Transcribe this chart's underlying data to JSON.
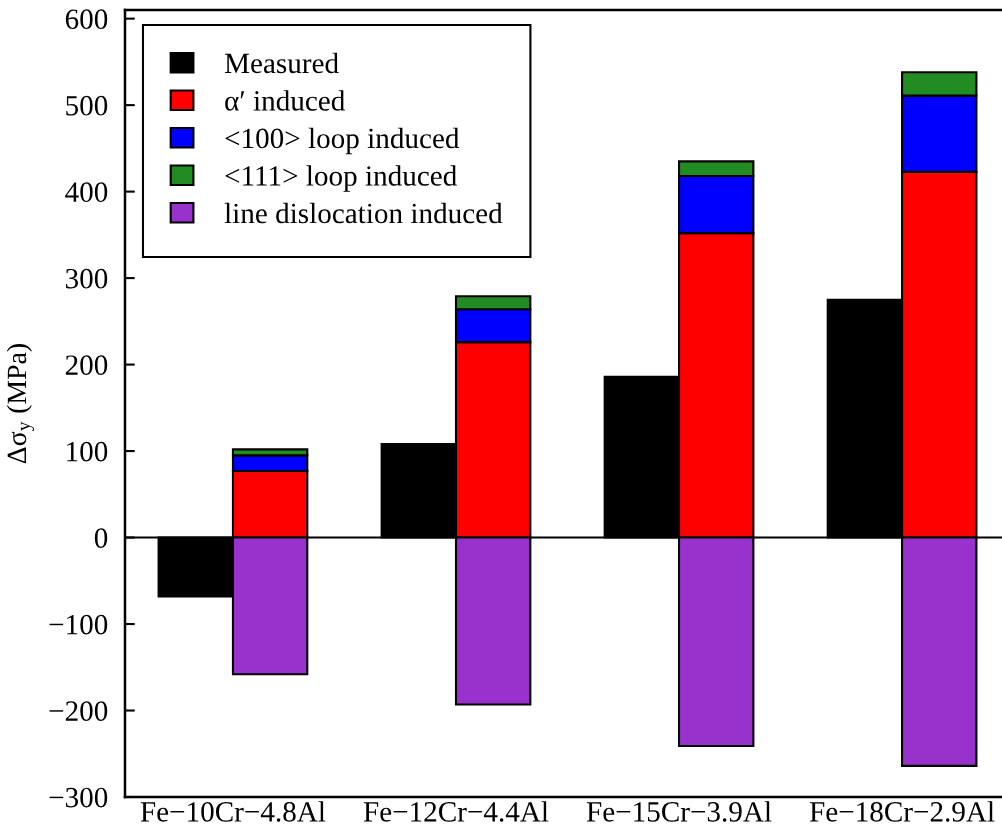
{
  "chart_data": {
    "type": "bar",
    "ylabel": "Δσ$_{y}$ (MPa)",
    "categories": [
      "Fe−10Cr−4.8Al",
      "Fe−12Cr−4.4Al",
      "Fe−15Cr−3.9Al",
      "Fe−18Cr−2.9Al"
    ],
    "series": [
      {
        "name": "Measured",
        "color": "#000000",
        "values": [
          -68,
          108,
          186,
          275
        ]
      },
      {
        "name": "α′ induced",
        "color": "#ff0000",
        "base": [
          0,
          0,
          0,
          0
        ],
        "values": [
          77,
          226,
          352,
          423
        ]
      },
      {
        "name": "<100> loop induced",
        "color": "#0000ff",
        "base": [
          77,
          226,
          352,
          423
        ],
        "values": [
          18,
          38,
          66,
          88
        ]
      },
      {
        "name": "<111> loop induced",
        "color": "#228b22",
        "base": [
          95,
          264,
          418,
          511
        ],
        "values": [
          7,
          15,
          17,
          27
        ]
      },
      {
        "name": "line dislocation induced",
        "color": "#9932cc",
        "base": [
          0,
          0,
          0,
          0
        ],
        "values": [
          -158,
          -193,
          -241,
          -264
        ]
      }
    ],
    "ylim": [
      -300,
      610
    ],
    "yticks": [
      {
        "value": -300,
        "label": "−300"
      },
      {
        "value": -200,
        "label": "−200"
      },
      {
        "value": -100,
        "label": "−100"
      },
      0,
      100,
      200,
      300,
      400,
      500,
      600
    ],
    "legend": "top left",
    "ref_lines": [
      {
        "axis": "y",
        "value": 0,
        "color": "#000000",
        "line_style": "solid"
      }
    ]
  }
}
